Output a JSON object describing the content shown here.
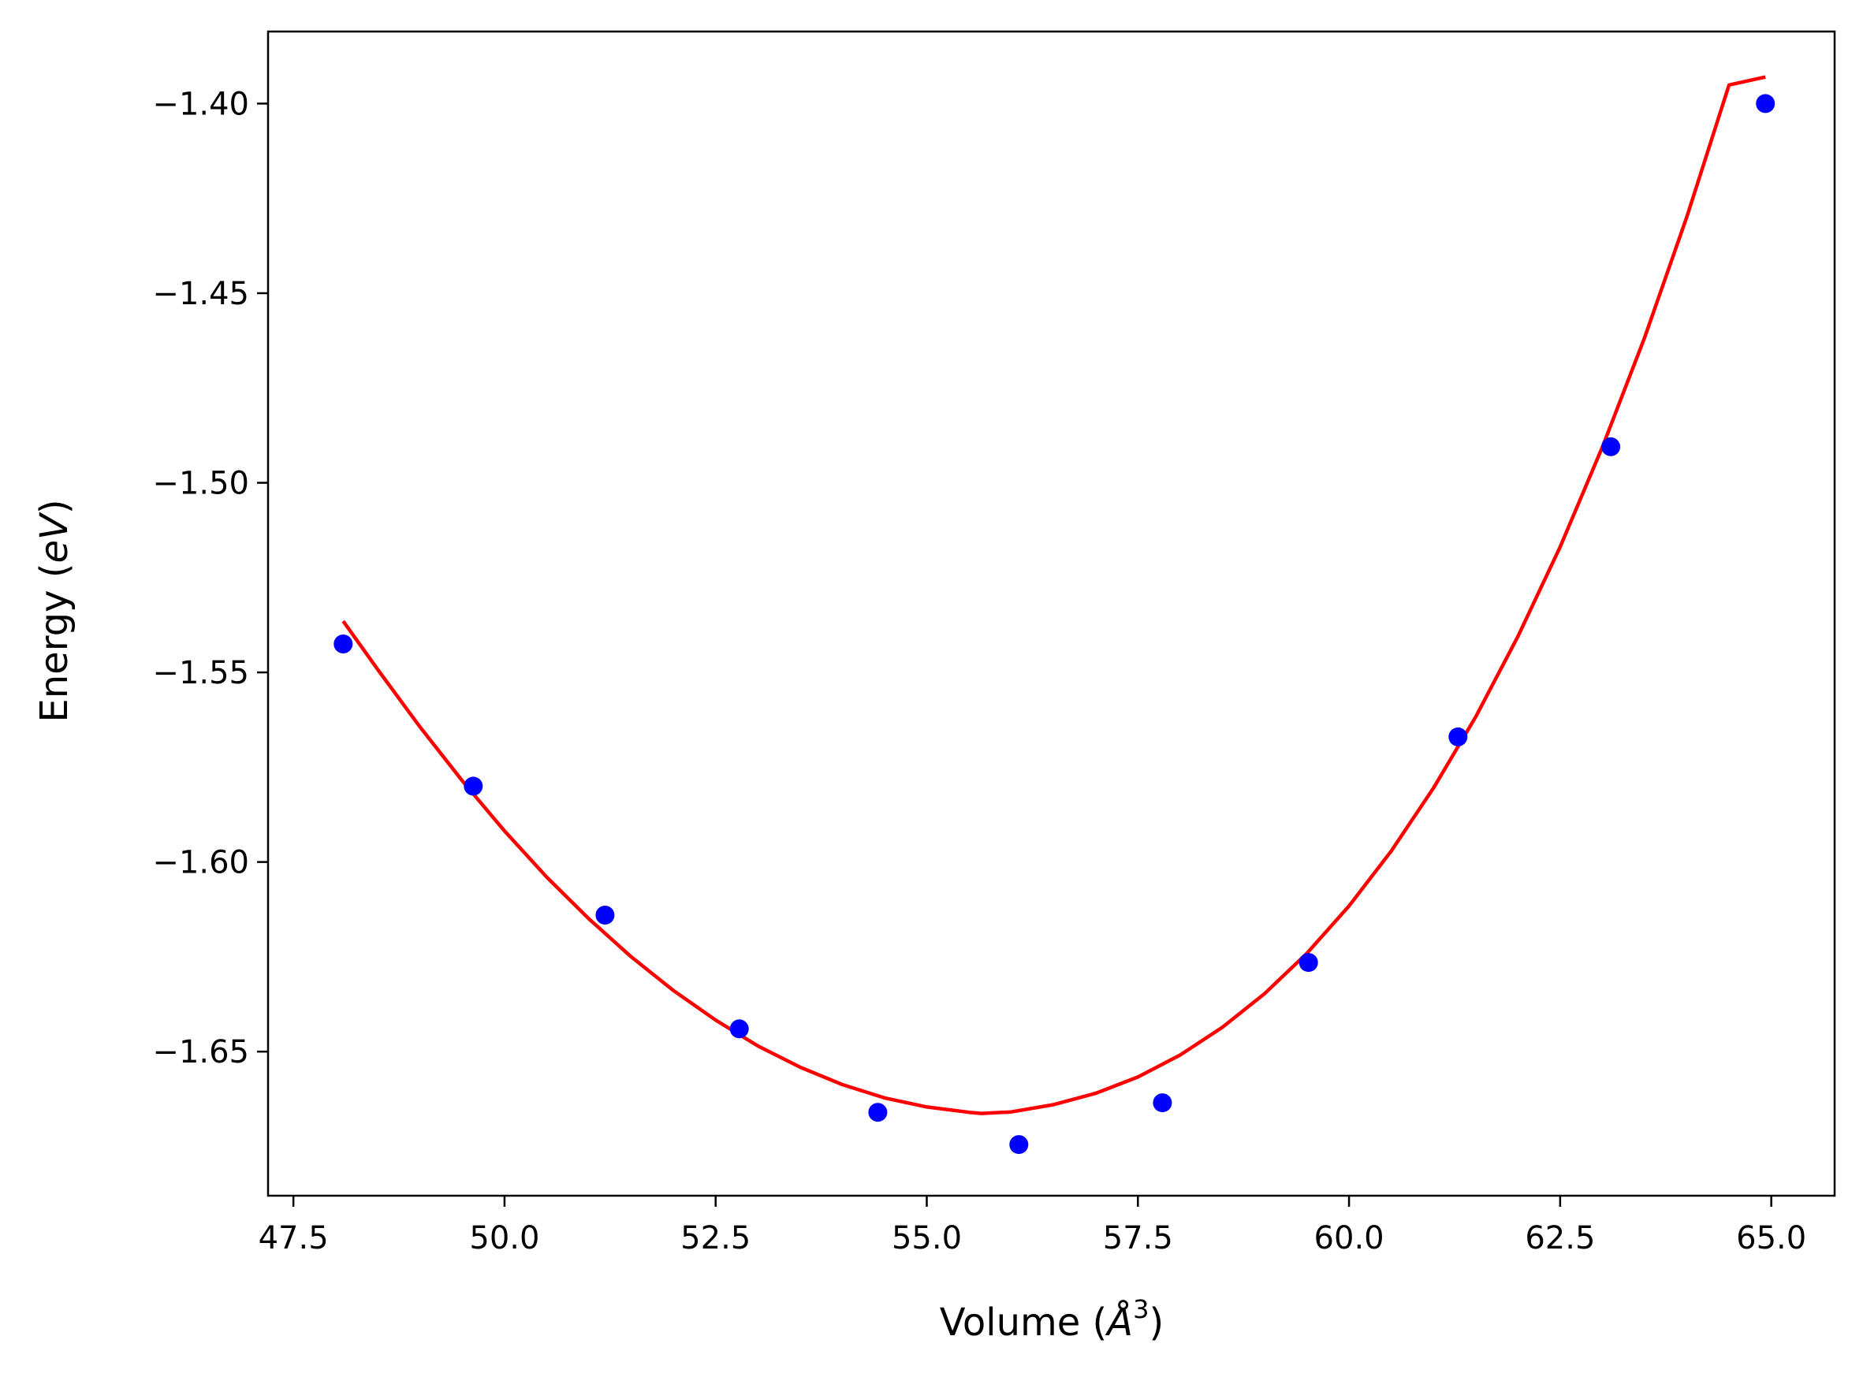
{
  "chart_data": {
    "type": "scatter",
    "title": "",
    "xlabel": "Volume (Å³)",
    "ylabel": "Energy (eV)",
    "xlabel_parts": {
      "before": "Volume (",
      "symbol": "Å",
      "sup": "3",
      "after": ")"
    },
    "ylabel_parts": {
      "before": "Energy (",
      "italic": "eV",
      "after": ")"
    },
    "xlim": [
      47.2,
      65.75
    ],
    "ylim": [
      -1.688,
      -1.381
    ],
    "x_ticks": [
      47.5,
      50.0,
      52.5,
      55.0,
      57.5,
      60.0,
      62.5,
      65.0
    ],
    "x_tick_labels": [
      "47.5",
      "50.0",
      "52.5",
      "55.0",
      "57.5",
      "60.0",
      "62.5",
      "65.0"
    ],
    "y_ticks": [
      -1.65,
      -1.6,
      -1.55,
      -1.5,
      -1.45,
      -1.4
    ],
    "y_tick_labels": [
      "−1.65",
      "−1.60",
      "−1.55",
      "−1.50",
      "−1.45",
      "−1.40"
    ],
    "grid": false,
    "legend": "none",
    "series": [
      {
        "kind": "points",
        "color": "#0000ff",
        "x": [
          48.09,
          49.63,
          51.19,
          52.78,
          54.42,
          56.09,
          57.79,
          59.52,
          61.29,
          63.1,
          64.93
        ],
        "y": [
          -1.5425,
          -1.58,
          -1.614,
          -1.644,
          -1.666,
          -1.6745,
          -1.6635,
          -1.6265,
          -1.567,
          -1.4905,
          -1.4
        ]
      },
      {
        "kind": "fit-line",
        "color": "#ff0000",
        "x": [
          48.09,
          48.5,
          49.0,
          49.5,
          50.0,
          50.5,
          51.0,
          51.5,
          52.0,
          52.5,
          53.0,
          53.5,
          54.0,
          54.5,
          55.0,
          55.5,
          55.65,
          56.0,
          56.5,
          57.0,
          57.5,
          58.0,
          58.5,
          59.0,
          59.5,
          60.0,
          60.5,
          61.0,
          61.5,
          62.0,
          62.5,
          63.0,
          63.5,
          64.0,
          64.5,
          64.93
        ],
        "y": [
          -1.5365,
          -1.5493,
          -1.5644,
          -1.5786,
          -1.5918,
          -1.604,
          -1.615,
          -1.625,
          -1.6339,
          -1.6417,
          -1.6485,
          -1.6541,
          -1.6587,
          -1.6622,
          -1.6646,
          -1.666,
          -1.6663,
          -1.6659,
          -1.664,
          -1.661,
          -1.6567,
          -1.6509,
          -1.6436,
          -1.6347,
          -1.6241,
          -1.6116,
          -1.5971,
          -1.5805,
          -1.5617,
          -1.5405,
          -1.5169,
          -1.4906,
          -1.4617,
          -1.4299,
          -1.3951,
          -1.393
        ]
      }
    ]
  }
}
